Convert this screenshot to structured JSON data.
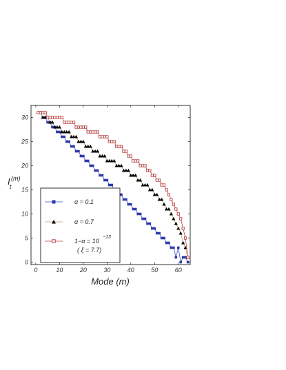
{
  "chart_data": {
    "type": "line",
    "xlabel": "Mode (m)",
    "ylabel": "I",
    "ylabel_sub": "t",
    "ylabel_sup": "(m)",
    "xlim": [
      -2,
      65
    ],
    "ylim": [
      -0.5,
      32.5
    ],
    "x_ticks": [
      0,
      10,
      20,
      30,
      40,
      50,
      60
    ],
    "y_ticks": [
      0,
      5,
      10,
      15,
      20,
      25,
      30
    ],
    "grid": false,
    "legend_position": "bottom-left",
    "series": [
      {
        "name": "α = 0.1",
        "label_main": "α = 0.1",
        "color": "#2b3aa8",
        "line_color": "#3b4fc8",
        "marker": "square",
        "x": [
          1,
          2,
          3,
          4,
          5,
          6,
          7,
          8,
          9,
          10,
          11,
          12,
          13,
          14,
          15,
          16,
          17,
          18,
          19,
          20,
          21,
          22,
          23,
          24,
          25,
          26,
          27,
          28,
          29,
          30,
          31,
          32,
          33,
          34,
          35,
          36,
          37,
          38,
          39,
          40,
          41,
          42,
          43,
          44,
          45,
          46,
          47,
          48,
          49,
          50,
          51,
          52,
          53,
          54,
          55,
          56,
          57,
          58,
          59,
          60,
          61,
          62,
          63,
          64
        ],
        "y": [
          31,
          31,
          30,
          30,
          29,
          29,
          28,
          28,
          27,
          27,
          26,
          26,
          25,
          25,
          24,
          24,
          23,
          23,
          22,
          22,
          21,
          21,
          20,
          20,
          19,
          19,
          18,
          18,
          17,
          17,
          16,
          16,
          15,
          15,
          14,
          14,
          13,
          13,
          12,
          12,
          11,
          11,
          10,
          10,
          9,
          9,
          8,
          8,
          7,
          7,
          6,
          6,
          5,
          5,
          4,
          4,
          3,
          3,
          1,
          3,
          0,
          1,
          1,
          0
        ]
      },
      {
        "name": "α = 0.7",
        "label_main": "α = 0.7",
        "color": "#000000",
        "line_color": "#b8a060",
        "marker": "triangle",
        "x": [
          1,
          2,
          3,
          4,
          5,
          6,
          7,
          8,
          9,
          10,
          11,
          12,
          13,
          14,
          15,
          16,
          17,
          18,
          19,
          20,
          21,
          22,
          23,
          24,
          25,
          26,
          27,
          28,
          29,
          30,
          31,
          32,
          33,
          34,
          35,
          36,
          37,
          38,
          39,
          40,
          41,
          42,
          43,
          44,
          45,
          46,
          47,
          48,
          49,
          50,
          51,
          52,
          53,
          54,
          55,
          56,
          57,
          58,
          59,
          60,
          61,
          62,
          63,
          64
        ],
        "y": [
          31,
          31,
          30,
          30,
          30,
          29,
          29,
          28,
          28,
          28,
          27,
          27,
          27,
          27,
          26,
          26,
          26,
          25,
          25,
          25,
          24,
          24,
          24,
          23,
          23,
          23,
          22,
          22,
          22,
          21,
          21,
          21,
          21,
          20,
          20,
          20,
          19,
          19,
          19,
          18,
          18,
          18,
          17,
          17,
          16,
          16,
          16,
          15,
          15,
          14,
          14,
          13,
          13,
          12,
          11,
          11,
          10,
          9,
          8,
          7,
          6,
          4,
          3,
          1
        ]
      },
      {
        "name": "1−α = 10^−13",
        "label_main": "1−α = 10",
        "label_sup": "−13",
        "label_sub": "( ξ = 7.7)",
        "color": "#b03030",
        "line_color": "#c04040",
        "marker": "open-square",
        "x": [
          1,
          2,
          3,
          4,
          5,
          6,
          7,
          8,
          9,
          10,
          11,
          12,
          13,
          14,
          15,
          16,
          17,
          18,
          19,
          20,
          21,
          22,
          23,
          24,
          25,
          26,
          27,
          28,
          29,
          30,
          31,
          32,
          33,
          34,
          35,
          36,
          37,
          38,
          39,
          40,
          41,
          42,
          43,
          44,
          45,
          46,
          47,
          48,
          49,
          50,
          51,
          52,
          53,
          54,
          55,
          56,
          57,
          58,
          59,
          60,
          61,
          62,
          63,
          64
        ],
        "y": [
          31,
          31,
          31,
          31,
          30,
          30,
          30,
          30,
          30,
          30,
          30,
          29,
          29,
          29,
          29,
          29,
          28,
          28,
          28,
          28,
          28,
          27,
          27,
          27,
          27,
          27,
          26,
          26,
          26,
          26,
          25,
          25,
          25,
          24,
          24,
          24,
          23,
          23,
          22,
          22,
          21,
          21,
          21,
          20,
          20,
          20,
          19,
          19,
          18,
          18,
          17,
          17,
          16,
          16,
          15,
          14,
          13,
          12,
          11,
          10,
          9,
          7,
          5,
          1
        ]
      }
    ]
  }
}
